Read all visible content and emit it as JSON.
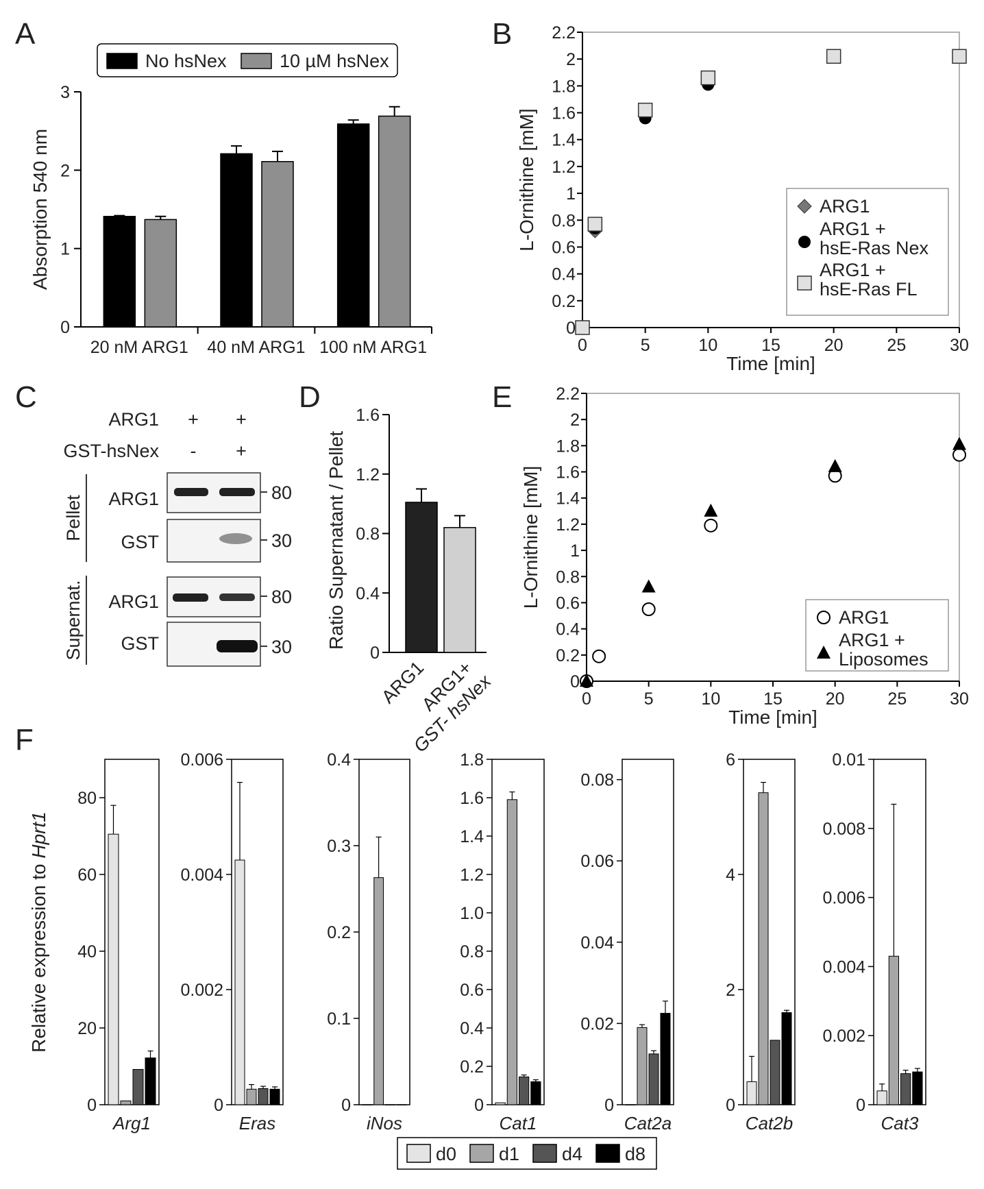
{
  "panels": {
    "A": {
      "letter": "A"
    },
    "B": {
      "letter": "B"
    },
    "C": {
      "letter": "C"
    },
    "D": {
      "letter": "D"
    },
    "E": {
      "letter": "E"
    },
    "F": {
      "letter": "F"
    }
  },
  "blot_c": {
    "row_labels": [
      "ARG1",
      "GST-hsNex"
    ],
    "row1_signs": [
      "+",
      "+"
    ],
    "row2_signs": [
      "-",
      "+"
    ],
    "group_labels": [
      "Pellet",
      "Supernat."
    ],
    "band_labels": [
      "ARG1",
      "GST",
      "ARG1",
      "GST"
    ],
    "mw_labels": [
      "80",
      "30",
      "80",
      "30"
    ]
  },
  "chart_data": [
    {
      "id": "A",
      "type": "bar",
      "categories": [
        "20 nM ARG1",
        "40 nM ARG1",
        "100 nM ARG1"
      ],
      "series": [
        {
          "name": "No hsNex",
          "values": [
            1.41,
            2.21,
            2.59
          ],
          "errors": [
            0.01,
            0.1,
            0.05
          ],
          "color": "#000000"
        },
        {
          "name": "10 µM hsNex",
          "values": [
            1.37,
            2.11,
            2.69
          ],
          "errors": [
            0.04,
            0.13,
            0.12
          ],
          "color": "#8f8f8f"
        }
      ],
      "ylabel": "Absorption 540 nm",
      "ylim": [
        0,
        3
      ],
      "yticks": [
        "0",
        "1",
        "2",
        "3"
      ],
      "legend": "top"
    },
    {
      "id": "B",
      "type": "scatter",
      "xlabel": "Time [min]",
      "ylabel": "L-Ornithine [mM]",
      "xlim": [
        0,
        30
      ],
      "ylim": [
        0,
        2.2
      ],
      "xticks": [
        "0",
        "5",
        "10",
        "15",
        "20",
        "25",
        "30"
      ],
      "yticks": [
        "0",
        "0.2",
        "0.4",
        "0.6",
        "0.8",
        "1",
        "1.2",
        "1.4",
        "1.6",
        "1.8",
        "2",
        "2.2"
      ],
      "series": [
        {
          "name": "ARG1",
          "marker": "diamond",
          "color": "#777777",
          "x": [
            0,
            1,
            5,
            10,
            20,
            30
          ],
          "y": [
            0,
            0.72,
            1.58,
            1.82,
            2.02,
            2.02
          ]
        },
        {
          "name": "ARG1 + hsE-Ras Nex",
          "marker": "circle",
          "color": "#000000",
          "x": [
            0,
            1,
            5,
            10,
            20,
            30
          ],
          "y": [
            0,
            0.74,
            1.56,
            1.81,
            2.02,
            2.02
          ]
        },
        {
          "name": "ARG1 + hsE-Ras FL",
          "marker": "square",
          "color": "#e0e0e0",
          "x": [
            0,
            1,
            5,
            10,
            20,
            30
          ],
          "y": [
            0,
            0.77,
            1.62,
            1.86,
            2.02,
            2.02
          ]
        }
      ],
      "legend": "bottom-right"
    },
    {
      "id": "D",
      "type": "bar",
      "categories": [
        "ARG1",
        "ARG1+ GST- hsNex"
      ],
      "values": [
        1.01,
        0.84
      ],
      "errors": [
        0.09,
        0.08
      ],
      "colors": [
        "#222222",
        "#d0d0d0"
      ],
      "ylabel": "Ratio Supernatant / Pellet",
      "ylim": [
        0,
        1.6
      ],
      "yticks": [
        "0",
        "0.4",
        "0.8",
        "1.2",
        "1.6"
      ]
    },
    {
      "id": "E",
      "type": "scatter",
      "xlabel": "Time [min]",
      "ylabel": "L-Ornithine [mM]",
      "xlim": [
        0,
        30
      ],
      "ylim": [
        0,
        2.2
      ],
      "xticks": [
        "0",
        "5",
        "10",
        "15",
        "20",
        "25",
        "30"
      ],
      "yticks": [
        "0",
        "0.2",
        "0.4",
        "0.6",
        "0.8",
        "1",
        "1.2",
        "1.4",
        "1.6",
        "1.8",
        "2",
        "2.2"
      ],
      "series": [
        {
          "name": "ARG1",
          "marker": "open-circle",
          "color": "#000000",
          "x": [
            0,
            1,
            5,
            10,
            20,
            30
          ],
          "y": [
            0,
            0.19,
            0.55,
            1.19,
            1.57,
            1.73
          ]
        },
        {
          "name": "ARG1 + Liposomes",
          "marker": "triangle",
          "color": "#000000",
          "x": [
            0,
            5,
            10,
            20,
            30
          ],
          "y": [
            0,
            0.72,
            1.3,
            1.64,
            1.81
          ]
        }
      ],
      "legend": "bottom-right"
    },
    {
      "id": "F",
      "type": "bar",
      "ylabel_prefix": "Relative expression to ",
      "ylabel_gene": "Hprt1",
      "legend": {
        "labels": [
          "d0",
          "d1",
          "d4",
          "d8"
        ],
        "colors": [
          "#e4e4e4",
          "#a6a6a6",
          "#555555",
          "#000000"
        ]
      },
      "subplots": [
        {
          "gene": "Arg1",
          "ylim": [
            0,
            90
          ],
          "yticks": [
            "0",
            "20",
            "40",
            "60",
            "80"
          ],
          "tickvals": [
            0,
            20,
            40,
            60,
            80
          ],
          "values": [
            70.5,
            1.0,
            9.2,
            12.2
          ],
          "errors": [
            7.5,
            0,
            0,
            1.8
          ]
        },
        {
          "gene": "Eras",
          "ylim": [
            0,
            0.006
          ],
          "yticks": [
            "0",
            "0.002",
            "0.004",
            "0.006"
          ],
          "tickvals": [
            0,
            0.002,
            0.004,
            0.006
          ],
          "values": [
            0.00425,
            0.00027,
            0.00028,
            0.00027
          ],
          "errors": [
            0.00135,
            8e-05,
            4e-05,
            4e-05
          ]
        },
        {
          "gene": "iNos",
          "ylim": [
            0,
            0.4
          ],
          "yticks": [
            "0",
            "0.1",
            "0.2",
            "0.3",
            "0.4"
          ],
          "tickvals": [
            0,
            0.1,
            0.2,
            0.3,
            0.4
          ],
          "values": [
            0.0,
            0.263,
            0.0,
            0.0
          ],
          "errors": [
            0,
            0.047,
            0,
            0
          ]
        },
        {
          "gene": "Cat1",
          "ylim": [
            0,
            1.8
          ],
          "yticks": [
            "0",
            "0.2",
            "0.4",
            "0.6",
            "0.8",
            "1.0",
            "1.2",
            "1.4",
            "1.6",
            "1.8"
          ],
          "tickvals": [
            0,
            0.2,
            0.4,
            0.6,
            0.8,
            1.0,
            1.2,
            1.4,
            1.6,
            1.8
          ],
          "values": [
            0.01,
            1.59,
            0.145,
            0.12
          ],
          "errors": [
            0,
            0.04,
            0.01,
            0.01
          ]
        },
        {
          "gene": "Cat2a",
          "ylim": [
            0,
            0.085
          ],
          "yticks": [
            "0",
            "0.02",
            "0.04",
            "0.06",
            "0.08"
          ],
          "tickvals": [
            0,
            0.02,
            0.04,
            0.06,
            0.08
          ],
          "values": [
            0.0,
            0.019,
            0.0125,
            0.0225
          ],
          "errors": [
            0,
            0.0007,
            0.0008,
            0.003
          ]
        },
        {
          "gene": "Cat2b",
          "ylim": [
            0,
            6
          ],
          "yticks": [
            "0",
            "2",
            "4",
            "6"
          ],
          "tickvals": [
            0,
            2,
            4,
            6
          ],
          "values": [
            0.4,
            5.42,
            1.12,
            1.6
          ],
          "errors": [
            0.44,
            0.18,
            0,
            0.04
          ]
        },
        {
          "gene": "Cat3",
          "ylim": [
            0,
            0.01
          ],
          "yticks": [
            "0",
            "0.002",
            "0.004",
            "0.006",
            "0.008",
            "0.01"
          ],
          "tickvals": [
            0,
            0.002,
            0.004,
            0.006,
            0.008,
            0.01
          ],
          "values": [
            0.0004,
            0.0043,
            0.0009,
            0.00095
          ],
          "errors": [
            0.0002,
            0.0044,
            0.0001,
            0.0001
          ]
        }
      ]
    }
  ]
}
